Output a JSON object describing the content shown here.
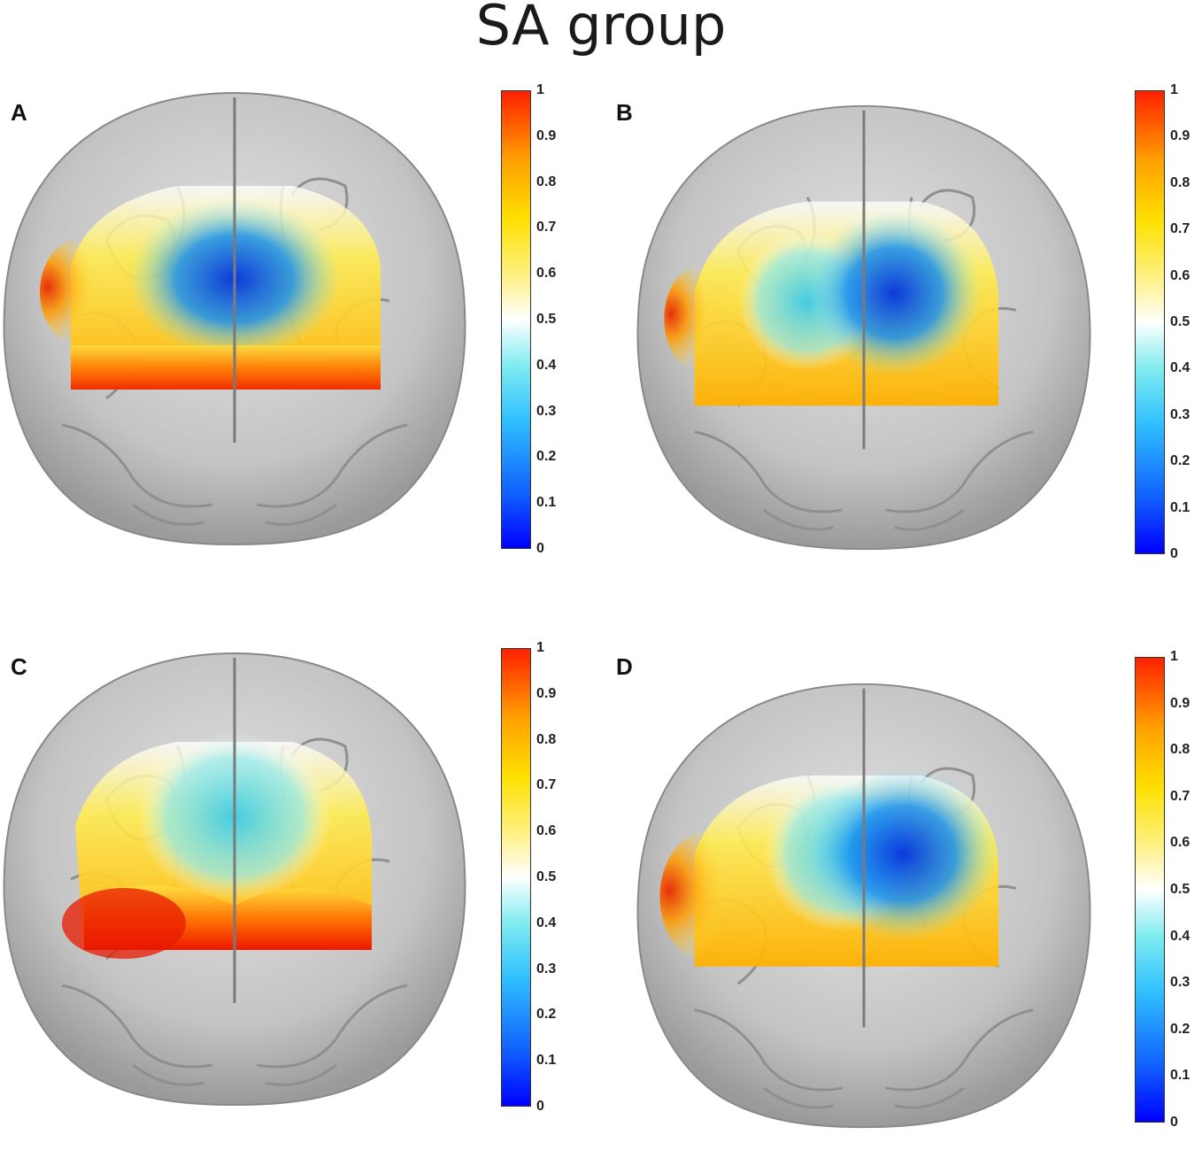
{
  "title": "SA group",
  "colorbar_ticks": [
    "1",
    "0.9",
    "0.8",
    "0.7",
    "0.6",
    "0.5",
    "0.4",
    "0.3",
    "0.2",
    "0.1",
    "0"
  ],
  "colors": {
    "low": "#0000ff",
    "mid": "#ffffff",
    "high": "#ff0000",
    "brain_gray": "#bdbdbd"
  },
  "panels": [
    {
      "label": "A"
    },
    {
      "label": "B"
    },
    {
      "label": "C"
    },
    {
      "label": "D"
    }
  ]
}
